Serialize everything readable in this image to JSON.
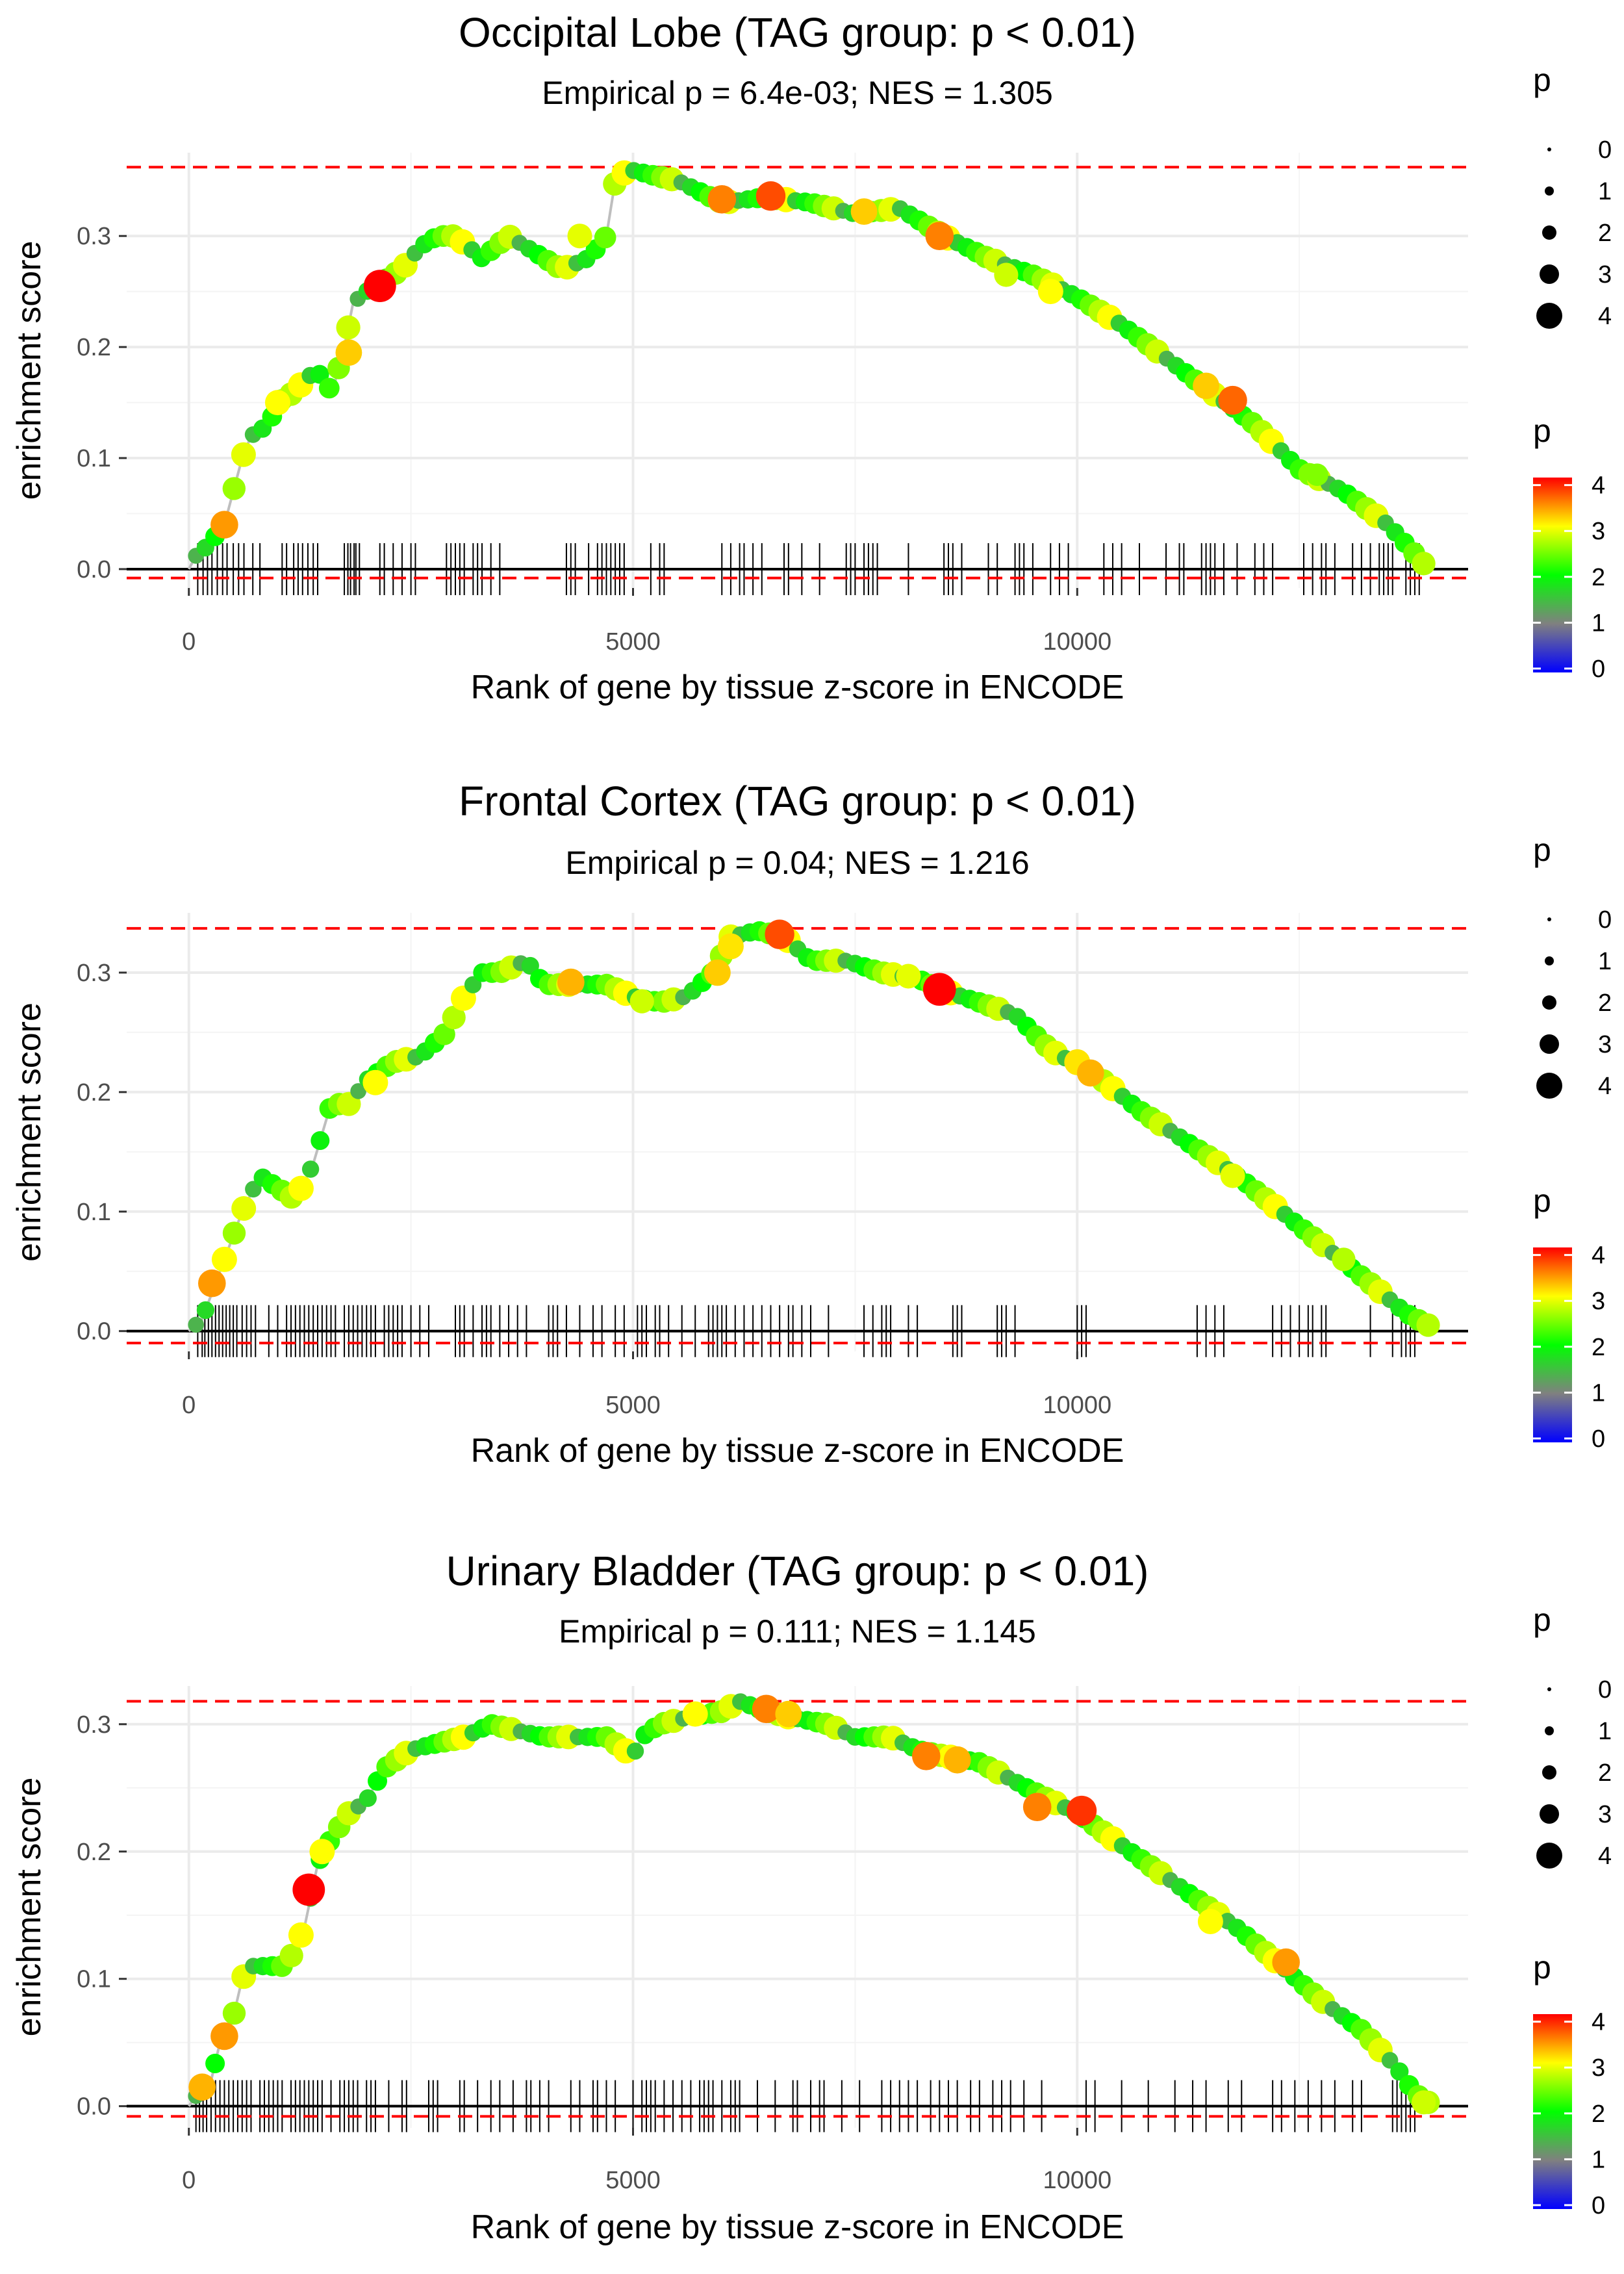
{
  "chart_data": [
    {
      "type": "line",
      "title": "Occipital Lobe (TAG group: p < 0.01)",
      "subtitle": "Empirical p = 6.4e-03; NES = 1.305",
      "xlabel": "Rank of gene by tissue z-score in ENCODE",
      "ylabel": "enrichment score",
      "xlim": [
        -700,
        14400
      ],
      "ylim": [
        -0.017,
        0.375
      ],
      "x_ticks": [
        "0",
        "5000",
        "10000"
      ],
      "y_ticks": [
        "0.0",
        "0.1",
        "0.2",
        "0.3"
      ],
      "reference_lines": {
        "max_es": 0.362,
        "min_es": -0.008,
        "zero": 0.0
      },
      "curve": [
        [
          0,
          0
        ],
        [
          100,
          0.015
        ],
        [
          200,
          0.02
        ],
        [
          400,
          0.04
        ],
        [
          500,
          0.07
        ],
        [
          600,
          0.1
        ],
        [
          700,
          0.12
        ],
        [
          900,
          0.13
        ],
        [
          1000,
          0.15
        ],
        [
          1200,
          0.16
        ],
        [
          1300,
          0.17
        ],
        [
          1450,
          0.18
        ],
        [
          1550,
          0.16
        ],
        [
          1650,
          0.17
        ],
        [
          1750,
          0.2
        ],
        [
          1850,
          0.24
        ],
        [
          2000,
          0.25
        ],
        [
          2200,
          0.26
        ],
        [
          2400,
          0.27
        ],
        [
          2600,
          0.29
        ],
        [
          2800,
          0.3
        ],
        [
          3000,
          0.3
        ],
        [
          3300,
          0.28
        ],
        [
          3600,
          0.3
        ],
        [
          4200,
          0.27
        ],
        [
          4500,
          0.28
        ],
        [
          4700,
          0.3
        ],
        [
          4800,
          0.35
        ],
        [
          4950,
          0.36
        ],
        [
          5200,
          0.355
        ],
        [
          5500,
          0.35
        ],
        [
          6000,
          0.33
        ],
        [
          6500,
          0.335
        ],
        [
          7000,
          0.33
        ],
        [
          7500,
          0.32
        ],
        [
          8000,
          0.325
        ],
        [
          8500,
          0.3
        ],
        [
          9000,
          0.28
        ],
        [
          9500,
          0.265
        ],
        [
          10000,
          0.245
        ],
        [
          10500,
          0.22
        ],
        [
          11000,
          0.19
        ],
        [
          11500,
          0.16
        ],
        [
          12000,
          0.13
        ],
        [
          12500,
          0.09
        ],
        [
          13000,
          0.07
        ],
        [
          13500,
          0.04
        ],
        [
          13900,
          0.005
        ]
      ],
      "points": [
        [
          400,
          0.04,
          3.4
        ],
        [
          1000,
          0.15,
          3.0
        ],
        [
          1800,
          0.195,
          3.2
        ],
        [
          2150,
          0.255,
          4.2
        ],
        [
          4400,
          0.3,
          2.9
        ],
        [
          6000,
          0.333,
          3.5
        ],
        [
          6550,
          0.336,
          3.7
        ],
        [
          7600,
          0.322,
          3.2
        ],
        [
          8450,
          0.3,
          3.5
        ],
        [
          9200,
          0.265,
          2.8
        ],
        [
          9700,
          0.25,
          3.0
        ],
        [
          11450,
          0.165,
          3.2
        ],
        [
          11750,
          0.152,
          3.6
        ],
        [
          12700,
          0.085,
          2.5
        ]
      ],
      "p_point_count": 130,
      "gene_hits": [
        100,
        160,
        210,
        260,
        320,
        380,
        430,
        500,
        560,
        620,
        720,
        800,
        1050,
        1100,
        1180,
        1230,
        1280,
        1340,
        1400,
        1450,
        1750,
        1790,
        1820,
        1860,
        1880,
        1920,
        2150,
        2200,
        2300,
        2400,
        2500,
        2550,
        2900,
        2950,
        3000,
        3050,
        3100,
        3200,
        3250,
        3300,
        3400,
        3500,
        4250,
        4300,
        4350,
        4500,
        4600,
        4650,
        4700,
        4750,
        4800,
        4850,
        4900,
        5200,
        5300,
        5350,
        6000,
        6100,
        6200,
        6250,
        6350,
        6450,
        6700,
        6750,
        6900,
        7100,
        7400,
        7450,
        7500,
        7600,
        7650,
        7700,
        7750,
        8100,
        8500,
        8550,
        8600,
        8700,
        9000,
        9100,
        9300,
        9350,
        9400,
        9500,
        9700,
        9800,
        9900,
        10300,
        10400,
        10500,
        10700,
        11000,
        11150,
        11200,
        11400,
        11450,
        11500,
        11550,
        11650,
        11800,
        12000,
        12100,
        12200,
        12550,
        12650,
        12750,
        12800,
        12900,
        13100,
        13200,
        13300,
        13400,
        13450,
        13500,
        13550,
        13700,
        13750,
        13800,
        13850
      ]
    },
    {
      "type": "line",
      "title": "Frontal Cortex (TAG group: p < 0.01)",
      "subtitle": "Empirical p = 0.04; NES = 1.216",
      "xlabel": "Rank of gene by tissue z-score in ENCODE",
      "ylabel": "enrichment score",
      "xlim": [
        -700,
        14400
      ],
      "ylim": [
        -0.017,
        0.35
      ],
      "x_ticks": [
        "0",
        "5000",
        "10000"
      ],
      "y_ticks": [
        "0.0",
        "0.1",
        "0.2",
        "0.3"
      ],
      "reference_lines": {
        "max_es": 0.337,
        "min_es": -0.01,
        "zero": 0.0
      },
      "curve": [
        [
          0,
          0
        ],
        [
          150,
          0.01
        ],
        [
          300,
          0.04
        ],
        [
          450,
          0.07
        ],
        [
          600,
          0.1
        ],
        [
          800,
          0.13
        ],
        [
          1000,
          0.12
        ],
        [
          1200,
          0.11
        ],
        [
          1400,
          0.14
        ],
        [
          1600,
          0.19
        ],
        [
          1800,
          0.19
        ],
        [
          2000,
          0.21
        ],
        [
          2300,
          0.225
        ],
        [
          2600,
          0.23
        ],
        [
          2900,
          0.25
        ],
        [
          3100,
          0.28
        ],
        [
          3300,
          0.3
        ],
        [
          3500,
          0.3
        ],
        [
          3800,
          0.31
        ],
        [
          4000,
          0.29
        ],
        [
          4300,
          0.29
        ],
        [
          4700,
          0.29
        ],
        [
          5000,
          0.28
        ],
        [
          5300,
          0.275
        ],
        [
          5600,
          0.28
        ],
        [
          5900,
          0.3
        ],
        [
          6100,
          0.33
        ],
        [
          6400,
          0.335
        ],
        [
          6700,
          0.33
        ],
        [
          7000,
          0.31
        ],
        [
          7400,
          0.31
        ],
        [
          7800,
          0.3
        ],
        [
          8200,
          0.295
        ],
        [
          8500,
          0.285
        ],
        [
          8900,
          0.275
        ],
        [
          9300,
          0.265
        ],
        [
          9700,
          0.235
        ],
        [
          10200,
          0.215
        ],
        [
          10700,
          0.185
        ],
        [
          11300,
          0.155
        ],
        [
          11800,
          0.13
        ],
        [
          12300,
          0.1
        ],
        [
          12800,
          0.07
        ],
        [
          13300,
          0.04
        ],
        [
          13700,
          0.015
        ],
        [
          13950,
          0.005
        ]
      ],
      "points": [
        [
          260,
          0.04,
          3.4
        ],
        [
          400,
          0.06,
          3.0
        ],
        [
          2100,
          0.208,
          3.0
        ],
        [
          4300,
          0.292,
          3.3
        ],
        [
          5100,
          0.276,
          2.8
        ],
        [
          5950,
          0.3,
          3.2
        ],
        [
          6100,
          0.322,
          3.1
        ],
        [
          6650,
          0.332,
          3.7
        ],
        [
          8100,
          0.297,
          2.9
        ],
        [
          8450,
          0.286,
          4.3
        ],
        [
          10000,
          0.225,
          3.1
        ],
        [
          10150,
          0.216,
          3.3
        ],
        [
          11750,
          0.13,
          2.9
        ],
        [
          13000,
          0.06,
          2.7
        ]
      ],
      "p_point_count": 130,
      "gene_hits": [
        100,
        150,
        180,
        220,
        260,
        300,
        340,
        380,
        420,
        460,
        500,
        540,
        600,
        650,
        700,
        750,
        900,
        1000,
        1100,
        1150,
        1200,
        1250,
        1300,
        1350,
        1400,
        1450,
        1500,
        1550,
        1600,
        1650,
        1750,
        1800,
        1850,
        1900,
        1950,
        2000,
        2050,
        2100,
        2200,
        2250,
        2300,
        2350,
        2400,
        2500,
        2600,
        2700,
        3000,
        3050,
        3100,
        3200,
        3300,
        3350,
        3400,
        3500,
        3600,
        3700,
        3800,
        4050,
        4100,
        4150,
        4250,
        4400,
        4550,
        4650,
        4800,
        4900,
        5050,
        5100,
        5150,
        5250,
        5300,
        5400,
        5550,
        5700,
        5850,
        5900,
        5950,
        6000,
        6050,
        6150,
        6250,
        6350,
        6450,
        6550,
        6650,
        6750,
        6800,
        6900,
        7000,
        7200,
        7600,
        7700,
        7800,
        7850,
        7900,
        8100,
        8200,
        8600,
        8650,
        8700,
        9100,
        9150,
        9200,
        9300,
        10000,
        10050,
        10100,
        11350,
        11450,
        11550,
        11650,
        12200,
        12300,
        12400,
        12500,
        12600,
        12650,
        12750,
        12800,
        13300,
        13550,
        13650,
        13700,
        13750,
        13800
      ]
    },
    {
      "type": "line",
      "title": "Urinary Bladder (TAG group: p < 0.01)",
      "subtitle": "Empirical p = 0.111; NES = 1.145",
      "xlabel": "Rank of gene by tissue z-score in ENCODE",
      "ylabel": "enrichment score",
      "xlim": [
        -700,
        14400
      ],
      "ylim": [
        -0.017,
        0.33
      ],
      "x_ticks": [
        "0",
        "5000",
        "10000"
      ],
      "y_ticks": [
        "0.0",
        "0.1",
        "0.2",
        "0.3"
      ],
      "reference_lines": {
        "max_es": 0.318,
        "min_es": -0.008,
        "zero": 0.0
      },
      "curve": [
        [
          0,
          0
        ],
        [
          150,
          0.015
        ],
        [
          250,
          0.02
        ],
        [
          350,
          0.05
        ],
        [
          500,
          0.07
        ],
        [
          600,
          0.1
        ],
        [
          700,
          0.11
        ],
        [
          900,
          0.11
        ],
        [
          1100,
          0.11
        ],
        [
          1300,
          0.14
        ],
        [
          1450,
          0.19
        ],
        [
          1600,
          0.21
        ],
        [
          1800,
          0.23
        ],
        [
          2000,
          0.24
        ],
        [
          2200,
          0.265
        ],
        [
          2500,
          0.28
        ],
        [
          2800,
          0.285
        ],
        [
          3100,
          0.29
        ],
        [
          3400,
          0.3
        ],
        [
          3700,
          0.295
        ],
        [
          4000,
          0.29
        ],
        [
          4400,
          0.29
        ],
        [
          4700,
          0.29
        ],
        [
          5000,
          0.275
        ],
        [
          5100,
          0.29
        ],
        [
          5300,
          0.3
        ],
        [
          5600,
          0.305
        ],
        [
          6000,
          0.31
        ],
        [
          6200,
          0.318
        ],
        [
          6500,
          0.31
        ],
        [
          6800,
          0.305
        ],
        [
          7200,
          0.3
        ],
        [
          7500,
          0.29
        ],
        [
          7900,
          0.29
        ],
        [
          8200,
          0.28
        ],
        [
          8500,
          0.275
        ],
        [
          8900,
          0.27
        ],
        [
          9300,
          0.255
        ],
        [
          9700,
          0.24
        ],
        [
          10000,
          0.23
        ],
        [
          10400,
          0.21
        ],
        [
          10800,
          0.19
        ],
        [
          11300,
          0.165
        ],
        [
          11800,
          0.14
        ],
        [
          12300,
          0.11
        ],
        [
          12800,
          0.08
        ],
        [
          13200,
          0.06
        ],
        [
          13600,
          0.03
        ],
        [
          13800,
          0.01
        ],
        [
          13950,
          0.003
        ]
      ],
      "points": [
        [
          150,
          0.015,
          3.3
        ],
        [
          400,
          0.055,
          3.4
        ],
        [
          1350,
          0.17,
          4.2
        ],
        [
          1500,
          0.2,
          3.0
        ],
        [
          5700,
          0.308,
          3.0
        ],
        [
          6500,
          0.312,
          3.5
        ],
        [
          6750,
          0.308,
          3.2
        ],
        [
          8300,
          0.275,
          3.5
        ],
        [
          8650,
          0.272,
          3.3
        ],
        [
          9550,
          0.235,
          3.5
        ],
        [
          10050,
          0.232,
          3.8
        ],
        [
          11500,
          0.145,
          3.0
        ],
        [
          12350,
          0.113,
          3.4
        ],
        [
          13900,
          0.003,
          2.8
        ]
      ],
      "p_point_count": 130,
      "gene_hits": [
        80,
        120,
        160,
        200,
        250,
        300,
        350,
        400,
        450,
        500,
        550,
        600,
        650,
        700,
        800,
        850,
        900,
        950,
        1000,
        1050,
        1150,
        1200,
        1250,
        1300,
        1350,
        1400,
        1450,
        1500,
        1600,
        1700,
        1750,
        1800,
        1850,
        1900,
        2000,
        2050,
        2100,
        2250,
        2400,
        2450,
        2700,
        2750,
        2800,
        3050,
        3100,
        3250,
        3400,
        3500,
        3650,
        3800,
        3850,
        3950,
        4050,
        4300,
        4400,
        4550,
        4600,
        4700,
        4800,
        5000,
        5100,
        5150,
        5200,
        5250,
        5350,
        5450,
        5550,
        5650,
        5750,
        5800,
        5850,
        5900,
        6000,
        6100,
        6150,
        6200,
        6400,
        6600,
        6800,
        6850,
        7000,
        7100,
        7150,
        7350,
        7550,
        7800,
        7900,
        8000,
        8100,
        8200,
        8350,
        8450,
        8550,
        8650,
        8800,
        8900,
        9050,
        9150,
        9250,
        9400,
        9600,
        10100,
        10200,
        10500,
        10800,
        11100,
        11300,
        11450,
        11700,
        11850,
        12200,
        12300,
        12450,
        12600,
        12750,
        12900,
        13100,
        13200,
        13550,
        13600,
        13650,
        13700,
        13750,
        13800
      ]
    }
  ],
  "legend": {
    "size_title": "p",
    "size_labels": [
      "0",
      "1",
      "2",
      "3",
      "4"
    ],
    "color_title": "p",
    "color_labels": [
      "4",
      "3",
      "2",
      "1",
      "0"
    ],
    "color_stops": [
      "#0000ff",
      "#808080",
      "#00ff00",
      "#ffff00",
      "#ff0000"
    ]
  },
  "colors": {
    "max_line": "#ff0000",
    "zero_line": "#000000",
    "curve": "#bebebe",
    "grid": "#ebebeb"
  }
}
